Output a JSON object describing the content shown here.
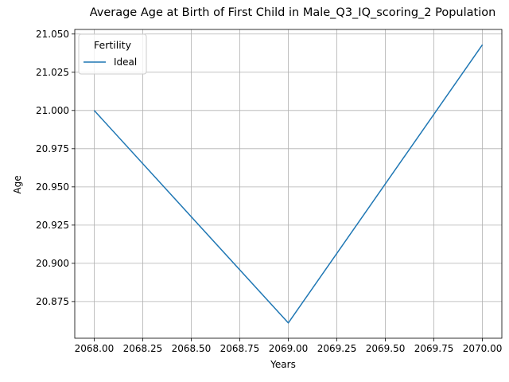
{
  "chart_data": {
    "type": "line",
    "title": "Average Age at Birth of First Child in Male_Q3_IQ_scoring_2 Population",
    "xlabel": "Years",
    "ylabel": "Age",
    "x": [
      2068,
      2069,
      2070
    ],
    "series": [
      {
        "name": "Ideal",
        "values": [
          21.0,
          20.861,
          21.043
        ],
        "color": "#1f77b4"
      }
    ],
    "xlim": [
      2067.9,
      2070.1
    ],
    "ylim": [
      20.851,
      21.053
    ],
    "x_ticks": [
      2068.0,
      2068.25,
      2068.5,
      2068.75,
      2069.0,
      2069.25,
      2069.5,
      2069.75,
      2070.0
    ],
    "x_tick_labels": [
      "2068.00",
      "2068.25",
      "2068.50",
      "2068.75",
      "2069.00",
      "2069.25",
      "2069.50",
      "2069.75",
      "2070.00"
    ],
    "y_ticks": [
      20.875,
      20.9,
      20.925,
      20.95,
      20.975,
      21.0,
      21.025,
      21.05
    ],
    "y_tick_labels": [
      "20.875",
      "20.900",
      "20.925",
      "20.950",
      "20.975",
      "21.000",
      "21.025",
      "21.050"
    ],
    "grid": true,
    "legend": {
      "title": "Fertility",
      "placement": "top-left"
    }
  }
}
